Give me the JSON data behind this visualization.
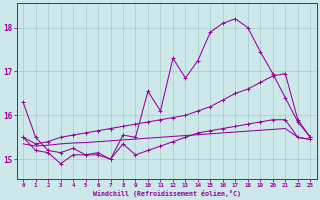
{
  "bg_color": "#cce8e8",
  "grid_color": "#aacccc",
  "line_color": "#990099",
  "xlim": [
    -0.5,
    23.5
  ],
  "ylim": [
    14.55,
    18.55
  ],
  "yticks": [
    15,
    16,
    17,
    18
  ],
  "xticks": [
    0,
    1,
    2,
    3,
    4,
    5,
    6,
    7,
    8,
    9,
    10,
    11,
    12,
    13,
    14,
    15,
    16,
    17,
    18,
    19,
    20,
    21,
    22,
    23
  ],
  "xlabel": "Windchill (Refroidissement éolien,°C)",
  "s1_x": [
    0,
    1,
    2,
    3,
    4,
    5,
    6,
    7,
    8,
    9,
    10,
    11,
    12,
    13,
    14,
    15,
    16,
    17,
    18,
    19,
    20,
    21,
    22,
    23
  ],
  "s1_y": [
    16.3,
    15.5,
    15.2,
    15.15,
    15.25,
    15.1,
    15.1,
    15.0,
    15.55,
    15.5,
    16.55,
    16.1,
    17.3,
    16.85,
    17.25,
    17.9,
    18.1,
    18.2,
    18.0,
    17.45,
    16.95,
    16.4,
    15.85,
    15.5
  ],
  "s2_x": [
    0,
    1,
    2,
    3,
    4,
    5,
    6,
    7,
    8,
    9,
    10,
    11,
    12,
    13,
    14,
    15,
    16,
    17,
    18,
    19,
    20,
    21,
    22,
    23
  ],
  "s2_y": [
    15.5,
    15.35,
    15.4,
    15.5,
    15.55,
    15.6,
    15.65,
    15.7,
    15.75,
    15.8,
    15.85,
    15.9,
    15.95,
    16.0,
    16.1,
    16.2,
    16.35,
    16.5,
    16.6,
    16.75,
    16.9,
    16.95,
    15.9,
    15.5
  ],
  "s3_x": [
    0,
    1,
    2,
    3,
    4,
    5,
    6,
    7,
    8,
    9,
    10,
    11,
    12,
    13,
    14,
    15,
    16,
    17,
    18,
    19,
    20,
    21,
    22,
    23
  ],
  "s3_y": [
    15.35,
    15.3,
    15.32,
    15.35,
    15.37,
    15.38,
    15.4,
    15.42,
    15.44,
    15.46,
    15.48,
    15.5,
    15.52,
    15.54,
    15.56,
    15.58,
    15.6,
    15.62,
    15.64,
    15.66,
    15.68,
    15.7,
    15.5,
    15.45
  ],
  "s4_x": [
    0,
    1,
    2,
    3,
    4,
    5,
    6,
    7,
    8,
    9,
    10,
    11,
    12,
    13,
    14,
    15,
    16,
    17,
    18,
    19,
    20,
    21,
    22,
    23
  ],
  "s4_y": [
    15.5,
    15.2,
    15.15,
    14.9,
    15.1,
    15.1,
    15.15,
    15.0,
    15.35,
    15.1,
    15.2,
    15.3,
    15.4,
    15.5,
    15.6,
    15.65,
    15.7,
    15.75,
    15.8,
    15.85,
    15.9,
    15.9,
    15.5,
    15.45
  ]
}
